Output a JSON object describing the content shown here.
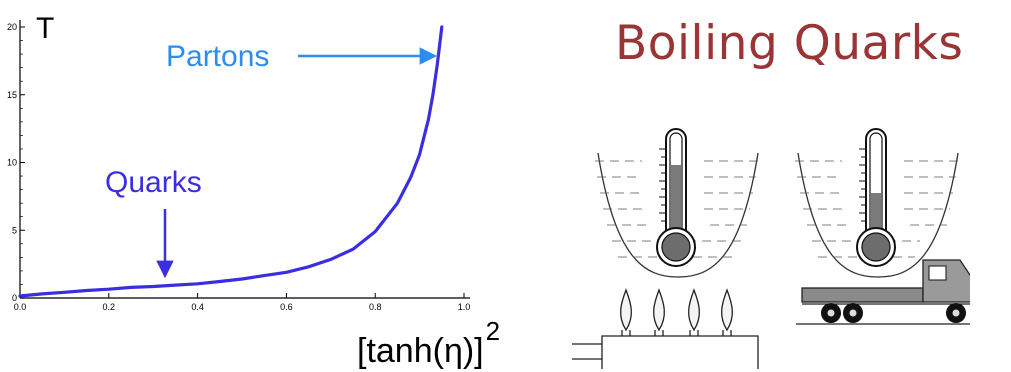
{
  "slide_title": "Boiling Quarks",
  "chart_data": {
    "type": "line",
    "title": "",
    "ylabel": "T",
    "xlabel_base": "[tanh(η)]",
    "xlabel_exponent": "2",
    "xlim": [
      0.0,
      1.0
    ],
    "ylim": [
      0,
      20
    ],
    "x_ticks": [
      "0.0",
      "0.2",
      "0.4",
      "0.6",
      "0.8",
      "1.0"
    ],
    "y_ticks": [
      "0",
      "5",
      "10",
      "15",
      "20"
    ],
    "grid": false,
    "line_color": "#3a2ee0",
    "series": [
      {
        "x": [
          0.0,
          0.05,
          0.1,
          0.15,
          0.2,
          0.25,
          0.3,
          0.35,
          0.4,
          0.45,
          0.5,
          0.55,
          0.6,
          0.65,
          0.7,
          0.75,
          0.8,
          0.85,
          0.88,
          0.9,
          0.92,
          0.93,
          0.94,
          0.95
        ],
        "y": [
          0.15,
          0.3,
          0.42,
          0.55,
          0.65,
          0.78,
          0.85,
          0.95,
          1.05,
          1.22,
          1.4,
          1.65,
          1.9,
          2.3,
          2.85,
          3.6,
          4.9,
          7.0,
          8.9,
          10.6,
          13.2,
          15.0,
          17.3,
          20.0
        ]
      }
    ],
    "annotations": [
      {
        "text": "Partons",
        "color": "#2d8cf0",
        "points_to": {
          "x": 0.94,
          "y": 18.0
        }
      },
      {
        "text": "Quarks",
        "color": "#3a2ee0",
        "points_to": {
          "x": 0.32,
          "y": 1.3
        }
      }
    ]
  }
}
